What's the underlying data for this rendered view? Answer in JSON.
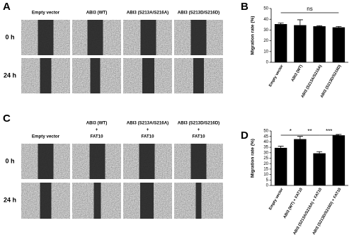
{
  "panel_a": {
    "label": "A",
    "columns": [
      "Empty vector",
      "ABI3 (WT)",
      "ABI3 (S213A/S216A)",
      "ABI3 (S213D/S216D)"
    ],
    "rows": [
      "0 h",
      "24 h"
    ]
  },
  "panel_c": {
    "label": "C",
    "columns": [
      [
        "Empty vector"
      ],
      [
        "ABI3 (WT)",
        "+",
        "FAT10"
      ],
      [
        "ABI3 (S213A/S216A)",
        "+",
        "FAT10"
      ],
      [
        "ABI3 (S213D/S216D)",
        "+",
        "FAT10"
      ]
    ],
    "rows": [
      "0 h",
      "24 h"
    ]
  },
  "chart_data": [
    {
      "type": "bar",
      "label": "B",
      "ylabel": "Migration rate (%)",
      "categories": [
        "Empty vector",
        "ABI3 (WT)",
        "ABI3 (S213A/S216A)",
        "ABI3 (S213D/S216D)"
      ],
      "values": [
        35.5,
        34.5,
        33.5,
        32.5
      ],
      "errors": [
        1,
        5,
        0.5,
        0.8
      ],
      "color": "#000000",
      "ylim": [
        0,
        50
      ],
      "yticks": [
        0,
        10,
        20,
        30,
        40,
        50
      ],
      "annotations": [
        "ns"
      ]
    },
    {
      "type": "bar",
      "label": "D",
      "ylabel": "Migration rate (%)",
      "categories": [
        "Empty vector",
        "ABI3 (WT) + FAT10",
        "ABI3 (S213A/S216A) + FAT10",
        "ABI3 (S213D/S216D) + FAT10"
      ],
      "values": [
        34.5,
        42.5,
        29.5,
        46
      ],
      "errors": [
        1.5,
        2.5,
        1.5,
        0.8
      ],
      "color": "#000000",
      "ylim": [
        0,
        50
      ],
      "yticks": [
        0,
        5,
        10,
        15,
        20,
        25,
        30,
        35,
        40,
        45,
        50
      ],
      "annotations": [
        "*",
        "**",
        "***"
      ]
    }
  ]
}
